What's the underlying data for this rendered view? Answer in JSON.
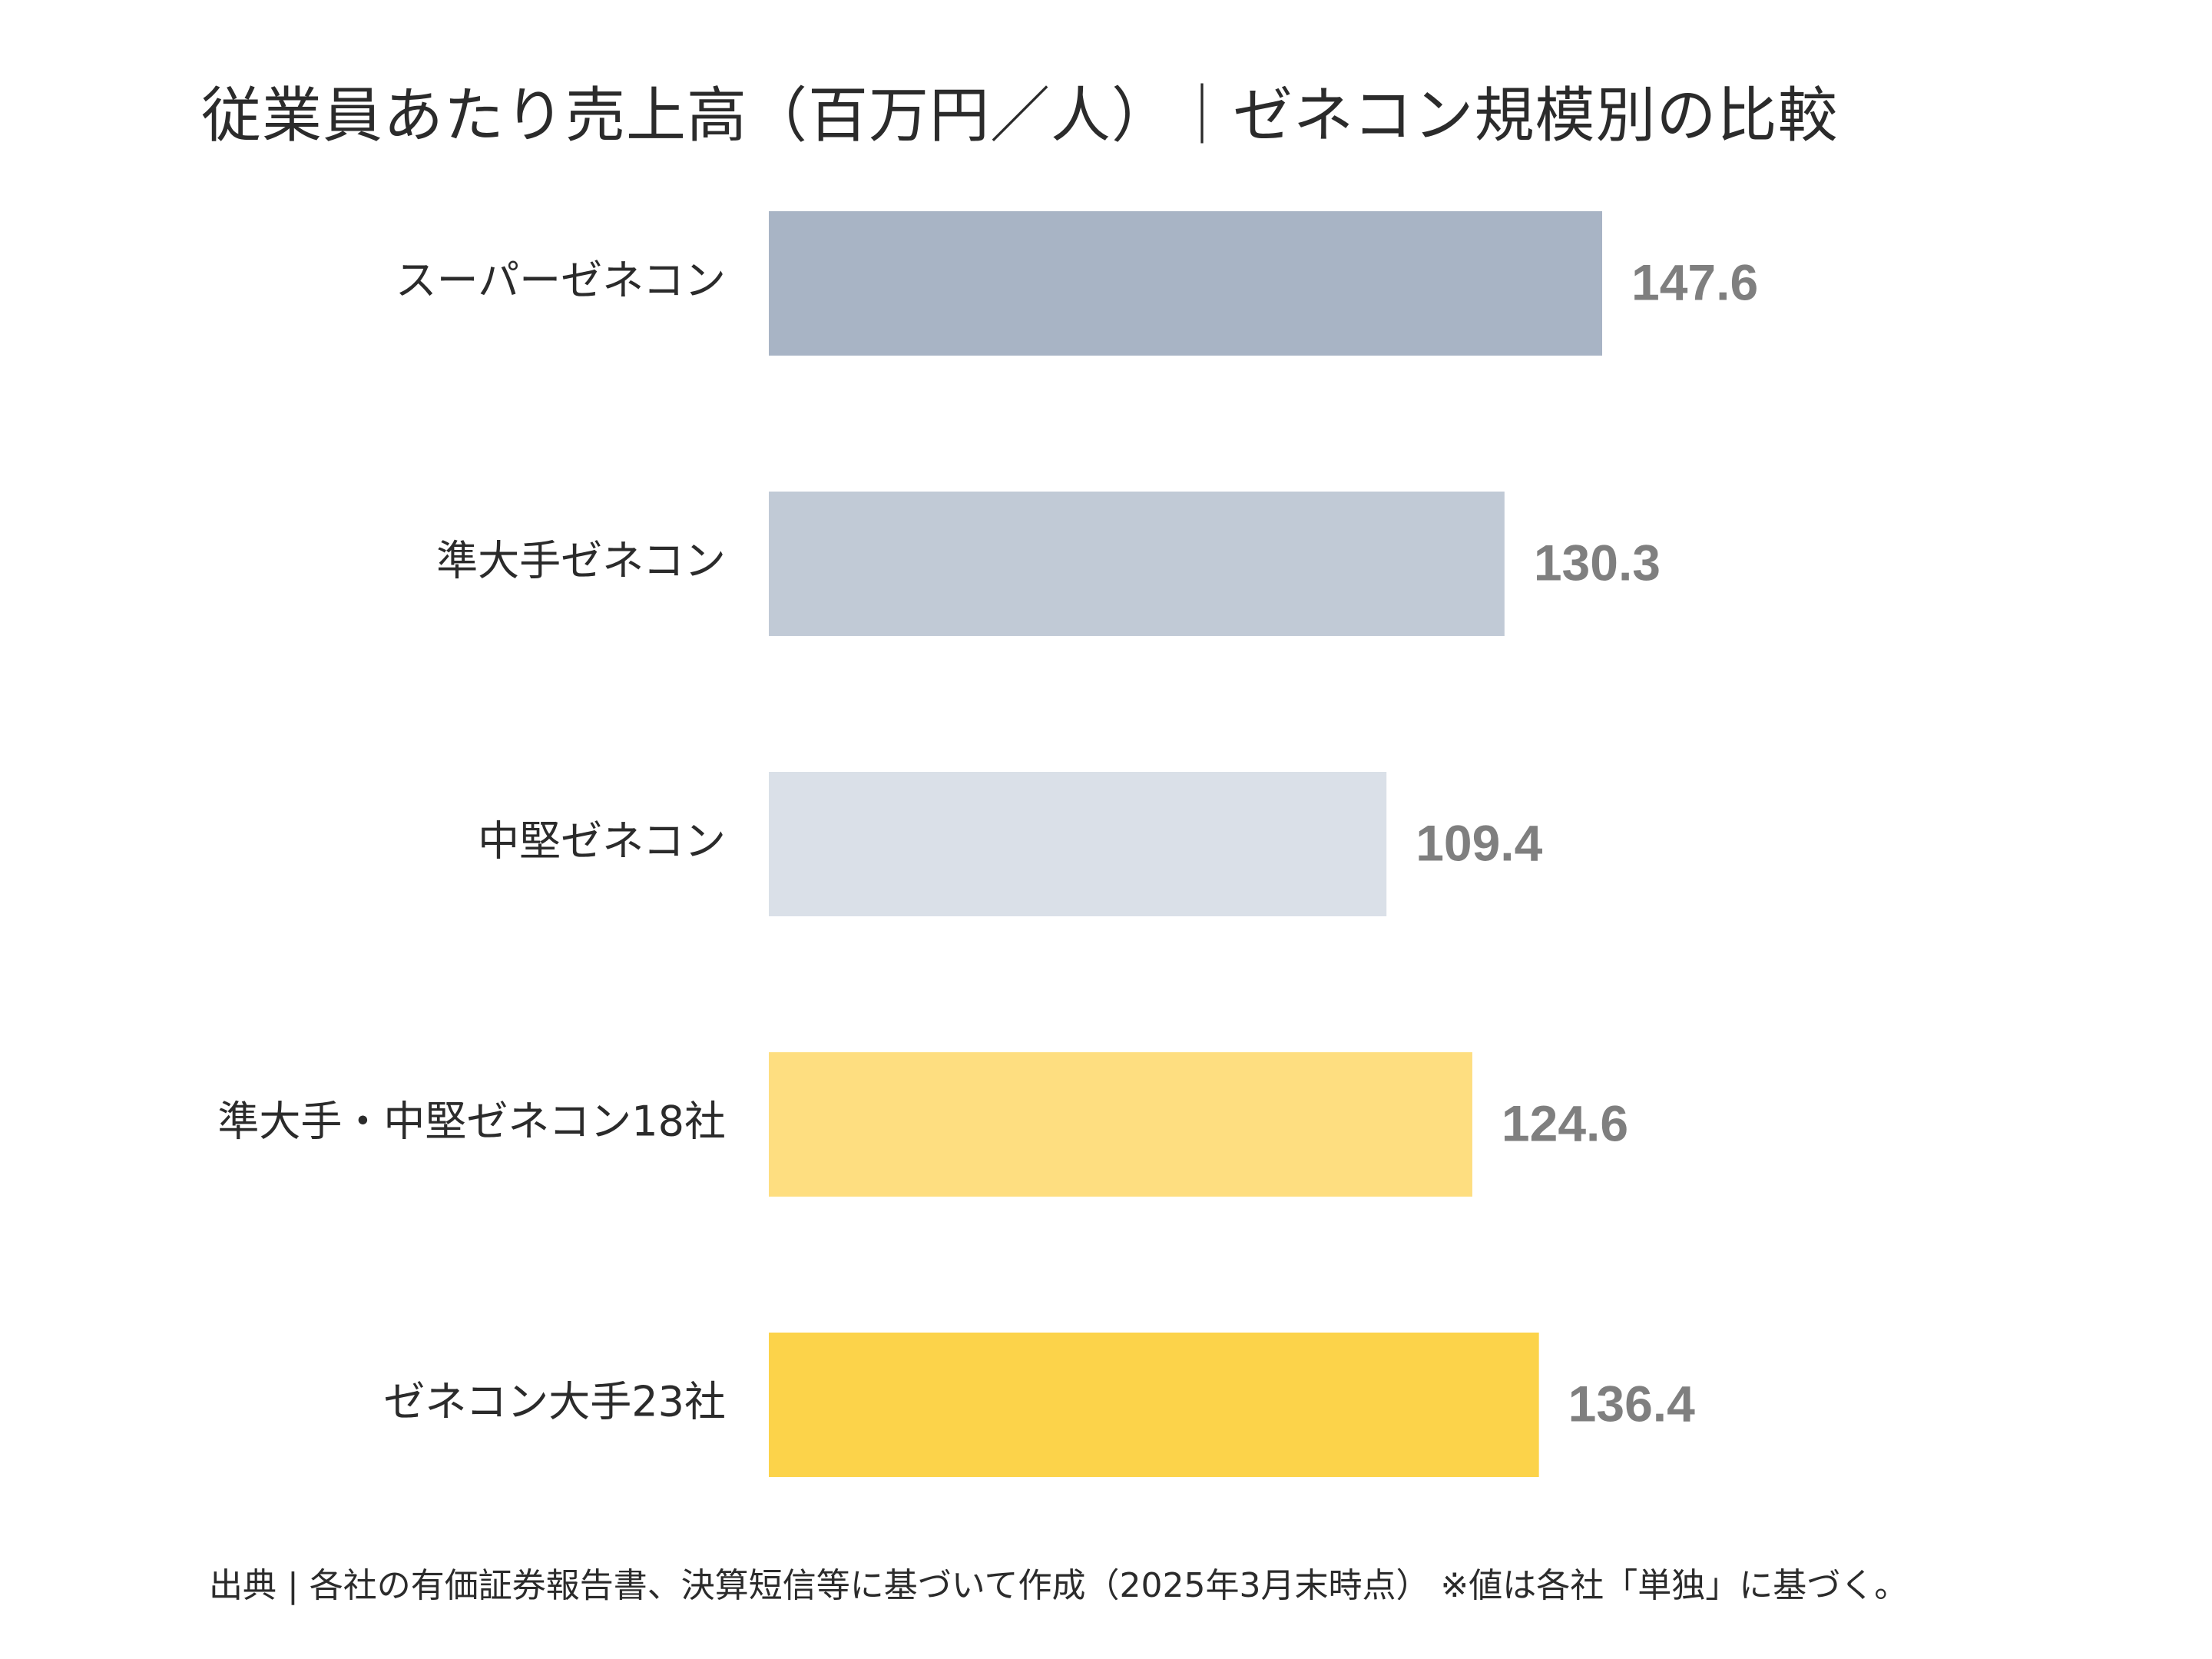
{
  "chart_data": {
    "type": "bar",
    "orientation": "horizontal",
    "title": "従業員あたり売上高（百万円／人）｜ゼネコン規模別の比較",
    "categories": [
      "スーパーゼネコン",
      "準大手ゼネコン",
      "中堅ゼネコン",
      "準大手・中堅ゼネコン18社",
      "ゼネコン大手23社"
    ],
    "values": [
      147.6,
      130.3,
      109.4,
      124.6,
      136.4
    ],
    "value_labels": [
      "147.6",
      "130.3",
      "109.4",
      "124.6",
      "136.4"
    ],
    "colors": [
      "#a8b4c5",
      "#c1cad6",
      "#dae0e8",
      "#fede80",
      "#fcd34a"
    ],
    "xlabel": "",
    "ylabel": "",
    "xlim": [
      0,
      147.6
    ],
    "grid": false,
    "legend": "none",
    "source": "出典 | 各社の有価証券報告書、決算短信等に基づいて作成（2025年3月末時点） ※値は各社「単独」に基づく。"
  }
}
